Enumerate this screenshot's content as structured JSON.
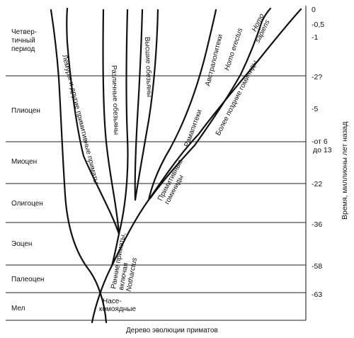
{
  "periods": [
    {
      "lines": [
        "Четвер-",
        "тичный",
        "период"
      ]
    },
    {
      "lines": [
        "Плиоцен"
      ]
    },
    {
      "lines": [
        "Миоцен"
      ]
    },
    {
      "lines": [
        "Олигоцен"
      ]
    },
    {
      "lines": [
        "Эоцен"
      ]
    },
    {
      "lines": [
        "Палеоцен"
      ]
    },
    {
      "lines": [
        "Мел"
      ]
    }
  ],
  "ticks": [
    "0",
    "-0,5",
    "-1",
    "-2?",
    "-5",
    "-от 6",
    "до 13",
    "-22",
    "-36",
    "-58",
    "-63"
  ],
  "axis_title": "Время, миллионы лет назад",
  "caption": "Дерево эволюции приматов",
  "branches": {
    "insectivores": [
      "Насе-",
      "комоядные"
    ],
    "early_primates": [
      "Ранние приматы,",
      "включая"
    ],
    "early_primates_genus": "Notharctus",
    "lemurs": "Лемуры и другие примитивные приматы",
    "various_monkeys": "Различные обезьяны",
    "higher_apes": "Высшие обезьяны",
    "primitive_hominids": [
      "Примитивные",
      "гоминиды"
    ],
    "ramapithecus": "Рамапитеки",
    "australopithecus": "Австралопитеки",
    "homo_erectus": "Homo erectus",
    "later_hominids": "Более поздние гоминиды",
    "homo_sapiens": [
      "Homo",
      "sapiens"
    ]
  }
}
